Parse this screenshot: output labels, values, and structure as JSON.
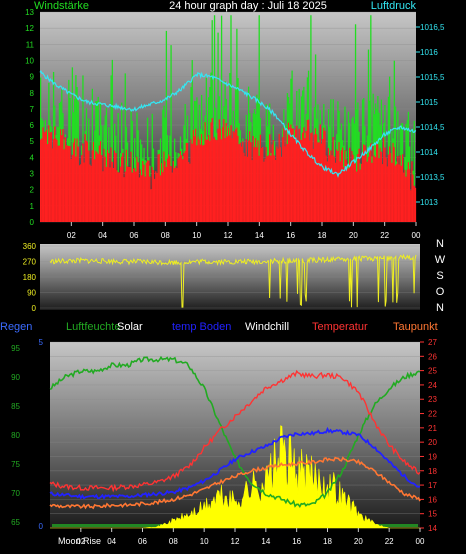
{
  "colors": {
    "background": "#000000",
    "wind": "#22dd22",
    "gust": "#ff2020",
    "pressure": "#33e6f2",
    "direction": "#eeee22",
    "regen": "#3b6bff",
    "humidity": "#22aa22",
    "solar": "#ffff00",
    "temp_boden": "#2222ff",
    "windchill": "#ffffff",
    "temperature": "#ff3333",
    "dewpoint": "#ff7733",
    "sky": "#228822",
    "date": "#dddd00"
  },
  "labels": {
    "windstaerke": "Windstärke",
    "title": "24 hour graph day : Juli 18 2025",
    "luftdruck": "Luftdruck",
    "compass": [
      "N",
      "W",
      "S",
      "O",
      "N"
    ],
    "regen": "Regen",
    "luftfeuchte": "Luftfeuchte",
    "solar": "Solar",
    "temp_boden": "temp Boden",
    "windchill": "Windchill",
    "temperatur": "Temperatur",
    "taupunkt": "Taupunkt",
    "moon_rise": "Moon Rise"
  },
  "chart_data": [
    {
      "type": "bar",
      "title": "24 hour graph day : Juli 18 2025",
      "x_ticks": [
        "02",
        "04",
        "06",
        "08",
        "10",
        "12",
        "14",
        "16",
        "18",
        "20",
        "22",
        "00"
      ],
      "y_left_label": "Windstärke",
      "y_left_ticks": [
        "0",
        "1",
        "2",
        "3",
        "4",
        "5",
        "6",
        "7",
        "8",
        "9",
        "10",
        "11",
        "12",
        "13"
      ],
      "y_left_range": [
        0,
        13
      ],
      "y_right_label": "Luftdruck",
      "y_right_ticks": [
        "1013",
        "1013,5",
        "1014",
        "1014,5",
        "1015",
        "1015,5",
        "1016",
        "1016,5"
      ],
      "y_right_range": [
        1012.6,
        1016.8
      ],
      "series": [
        {
          "name": "Windstärke",
          "x": [
            0,
            1,
            2,
            3,
            4,
            5,
            6,
            7,
            8,
            9,
            10,
            11,
            12,
            13,
            14,
            15,
            16,
            17,
            18,
            19,
            20,
            21,
            22,
            23,
            24
          ],
          "values": [
            7,
            6.5,
            6,
            6,
            5.5,
            5,
            5,
            4.5,
            5,
            5.5,
            6.5,
            7,
            7,
            6.5,
            6,
            6,
            7,
            7,
            6.5,
            5.5,
            5,
            5.5,
            6,
            5,
            4
          ]
        },
        {
          "name": "Luftdruck",
          "x": [
            0,
            1,
            2,
            3,
            4,
            5,
            6,
            7,
            8,
            9,
            10,
            11,
            12,
            13,
            14,
            15,
            16,
            17,
            18,
            19,
            20,
            21,
            22,
            23,
            24
          ],
          "values": [
            1015.6,
            1015.35,
            1015.15,
            1015.0,
            1014.95,
            1014.9,
            1014.85,
            1014.95,
            1015.05,
            1015.25,
            1015.55,
            1015.5,
            1015.35,
            1015.2,
            1015.0,
            1014.75,
            1014.35,
            1014.0,
            1013.7,
            1013.55,
            1013.8,
            1014.05,
            1014.35,
            1014.5,
            1014.4
          ]
        }
      ]
    },
    {
      "type": "scatter",
      "x_ticks": [],
      "y_ticks": [
        "0",
        "90",
        "180",
        "270",
        "360"
      ],
      "y_range": [
        0,
        360
      ],
      "y_right_ticks": [
        "N",
        "W",
        "S",
        "O",
        "N"
      ],
      "series": [
        {
          "name": "Windrichtung",
          "x": [
            0,
            2,
            4,
            6,
            8,
            10,
            12,
            14,
            16,
            18,
            20,
            22,
            24
          ],
          "values": [
            270,
            275,
            272,
            268,
            265,
            270,
            268,
            270,
            275,
            280,
            285,
            290,
            295
          ]
        }
      ]
    },
    {
      "type": "line",
      "x_ticks": [
        "02",
        "04",
        "06",
        "08",
        "10",
        "12",
        "14",
        "16",
        "18",
        "20",
        "22",
        "00"
      ],
      "y_left_range": [
        64,
        96
      ],
      "y_left_ticks": [
        "65",
        "70",
        "75",
        "80",
        "85",
        "90",
        "95"
      ],
      "y_inner_ticks": [
        "0",
        "5"
      ],
      "y_right_range": [
        14,
        27
      ],
      "y_right_ticks": [
        "14",
        "15",
        "16",
        "17",
        "18",
        "19",
        "20",
        "21",
        "22",
        "23",
        "24",
        "25",
        "26",
        "27"
      ],
      "legend": [
        "Regen",
        "Luftfeuchte",
        "Solar",
        "temp Boden",
        "Windchill",
        "Temperatur",
        "Taupunkt"
      ],
      "series": [
        {
          "name": "Luftfeuchte",
          "x": [
            0,
            1,
            2,
            3,
            4,
            5,
            6,
            7,
            8,
            9,
            10,
            11,
            12,
            13,
            14,
            15,
            16,
            17,
            18,
            19,
            20,
            21,
            22,
            23,
            24
          ],
          "values": [
            88,
            90,
            91,
            91,
            92,
            92,
            93,
            93,
            93,
            92,
            88,
            82,
            76,
            72,
            70,
            69,
            68,
            68,
            70,
            74,
            80,
            85,
            88,
            90,
            91
          ]
        },
        {
          "name": "Temperatur",
          "x": [
            0,
            1,
            2,
            3,
            4,
            5,
            6,
            7,
            8,
            9,
            10,
            11,
            12,
            13,
            14,
            15,
            16,
            17,
            18,
            19,
            20,
            21,
            22,
            23,
            24
          ],
          "values": [
            17.1,
            16.9,
            16.8,
            16.8,
            16.8,
            16.9,
            17.0,
            17.2,
            17.6,
            18.3,
            19.6,
            20.8,
            21.8,
            22.8,
            23.8,
            24.3,
            24.8,
            24.6,
            24.7,
            24.5,
            23.5,
            21.5,
            19.8,
            18.6,
            17.8
          ]
        },
        {
          "name": "temp Boden",
          "x": [
            0,
            1,
            2,
            3,
            4,
            5,
            6,
            7,
            8,
            9,
            10,
            11,
            12,
            13,
            14,
            15,
            16,
            17,
            18,
            19,
            20,
            21,
            22,
            23,
            24
          ],
          "values": [
            16.4,
            16.3,
            16.2,
            16.2,
            16.2,
            16.2,
            16.3,
            16.4,
            16.5,
            16.8,
            17.3,
            18.0,
            18.8,
            19.3,
            19.7,
            20.3,
            20.6,
            20.6,
            20.8,
            20.7,
            20.5,
            19.7,
            18.6,
            17.6,
            16.8
          ]
        },
        {
          "name": "Taupunkt",
          "x": [
            0,
            1,
            2,
            3,
            4,
            5,
            6,
            7,
            8,
            9,
            10,
            11,
            12,
            13,
            14,
            15,
            16,
            17,
            18,
            19,
            20,
            21,
            22,
            23,
            24
          ],
          "values": [
            15.6,
            15.5,
            15.5,
            15.5,
            15.6,
            15.6,
            15.7,
            15.8,
            16.0,
            16.3,
            16.7,
            17.2,
            17.6,
            18.0,
            18.2,
            18.4,
            18.5,
            18.6,
            18.8,
            18.8,
            18.6,
            18.0,
            17.2,
            16.4,
            16.0
          ]
        },
        {
          "name": "Solar",
          "x": [
            0,
            1,
            2,
            3,
            4,
            5,
            6,
            7,
            8,
            9,
            10,
            11,
            12,
            13,
            14,
            15,
            16,
            17,
            18,
            19,
            20,
            21,
            22,
            23,
            24
          ],
          "values": [
            0,
            0,
            0,
            0,
            0,
            0,
            0,
            0.1,
            0.5,
            0.9,
            1.4,
            2.2,
            1.8,
            2.8,
            3.2,
            5.2,
            4.1,
            3.5,
            3.2,
            2.2,
            1.0,
            0.3,
            0,
            0,
            0
          ]
        }
      ]
    }
  ]
}
